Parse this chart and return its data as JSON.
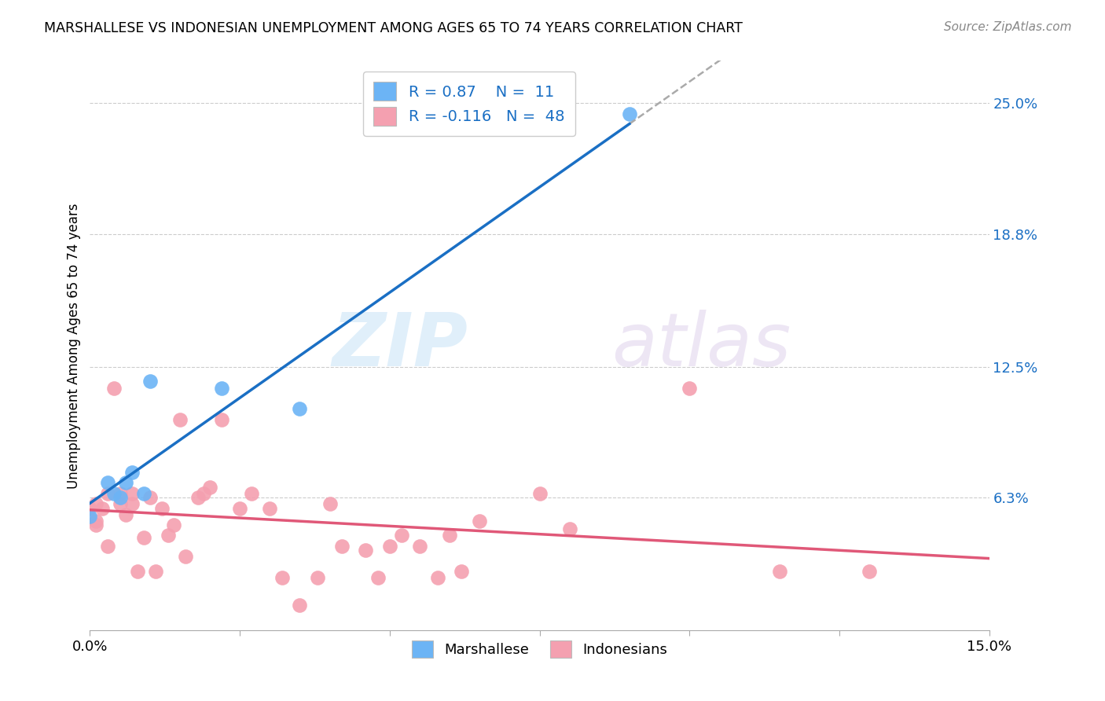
{
  "title": "MARSHALLESE VS INDONESIAN UNEMPLOYMENT AMONG AGES 65 TO 74 YEARS CORRELATION CHART",
  "source": "Source: ZipAtlas.com",
  "ylabel": "Unemployment Among Ages 65 to 74 years",
  "xlim": [
    0,
    0.15
  ],
  "ylim": [
    0,
    0.27
  ],
  "xtick_positions": [
    0.0,
    0.025,
    0.05,
    0.075,
    0.1,
    0.125,
    0.15
  ],
  "xticklabels": [
    "0.0%",
    "",
    "",
    "",
    "",
    "",
    "15.0%"
  ],
  "yticks_right": [
    0.063,
    0.125,
    0.188,
    0.25
  ],
  "ytick_labels_right": [
    "6.3%",
    "12.5%",
    "18.8%",
    "25.0%"
  ],
  "marshallese_R": 0.87,
  "marshallese_N": 11,
  "indonesian_R": -0.116,
  "indonesian_N": 48,
  "blue_color": "#6cb4f5",
  "pink_color": "#f4a0b0",
  "blue_line_color": "#1a6fc4",
  "pink_line_color": "#e05878",
  "watermark_zip": "ZIP",
  "watermark_atlas": "atlas",
  "marshallese_x": [
    0.0,
    0.003,
    0.004,
    0.005,
    0.006,
    0.007,
    0.009,
    0.01,
    0.022,
    0.035,
    0.09
  ],
  "marshallese_y": [
    0.054,
    0.07,
    0.065,
    0.063,
    0.07,
    0.075,
    0.065,
    0.118,
    0.115,
    0.105,
    0.245
  ],
  "indonesian_x": [
    0.0,
    0.001,
    0.001,
    0.001,
    0.002,
    0.003,
    0.003,
    0.004,
    0.005,
    0.005,
    0.006,
    0.007,
    0.007,
    0.008,
    0.009,
    0.01,
    0.011,
    0.012,
    0.013,
    0.014,
    0.015,
    0.016,
    0.018,
    0.019,
    0.02,
    0.022,
    0.025,
    0.027,
    0.03,
    0.032,
    0.035,
    0.038,
    0.04,
    0.042,
    0.046,
    0.048,
    0.05,
    0.052,
    0.055,
    0.058,
    0.06,
    0.062,
    0.065,
    0.075,
    0.08,
    0.1,
    0.115,
    0.13
  ],
  "indonesian_y": [
    0.058,
    0.05,
    0.06,
    0.052,
    0.058,
    0.065,
    0.04,
    0.115,
    0.06,
    0.065,
    0.055,
    0.065,
    0.06,
    0.028,
    0.044,
    0.063,
    0.028,
    0.058,
    0.045,
    0.05,
    0.1,
    0.035,
    0.063,
    0.065,
    0.068,
    0.1,
    0.058,
    0.065,
    0.058,
    0.025,
    0.012,
    0.025,
    0.06,
    0.04,
    0.038,
    0.025,
    0.04,
    0.045,
    0.04,
    0.025,
    0.045,
    0.028,
    0.052,
    0.065,
    0.048,
    0.115,
    0.028,
    0.028
  ]
}
